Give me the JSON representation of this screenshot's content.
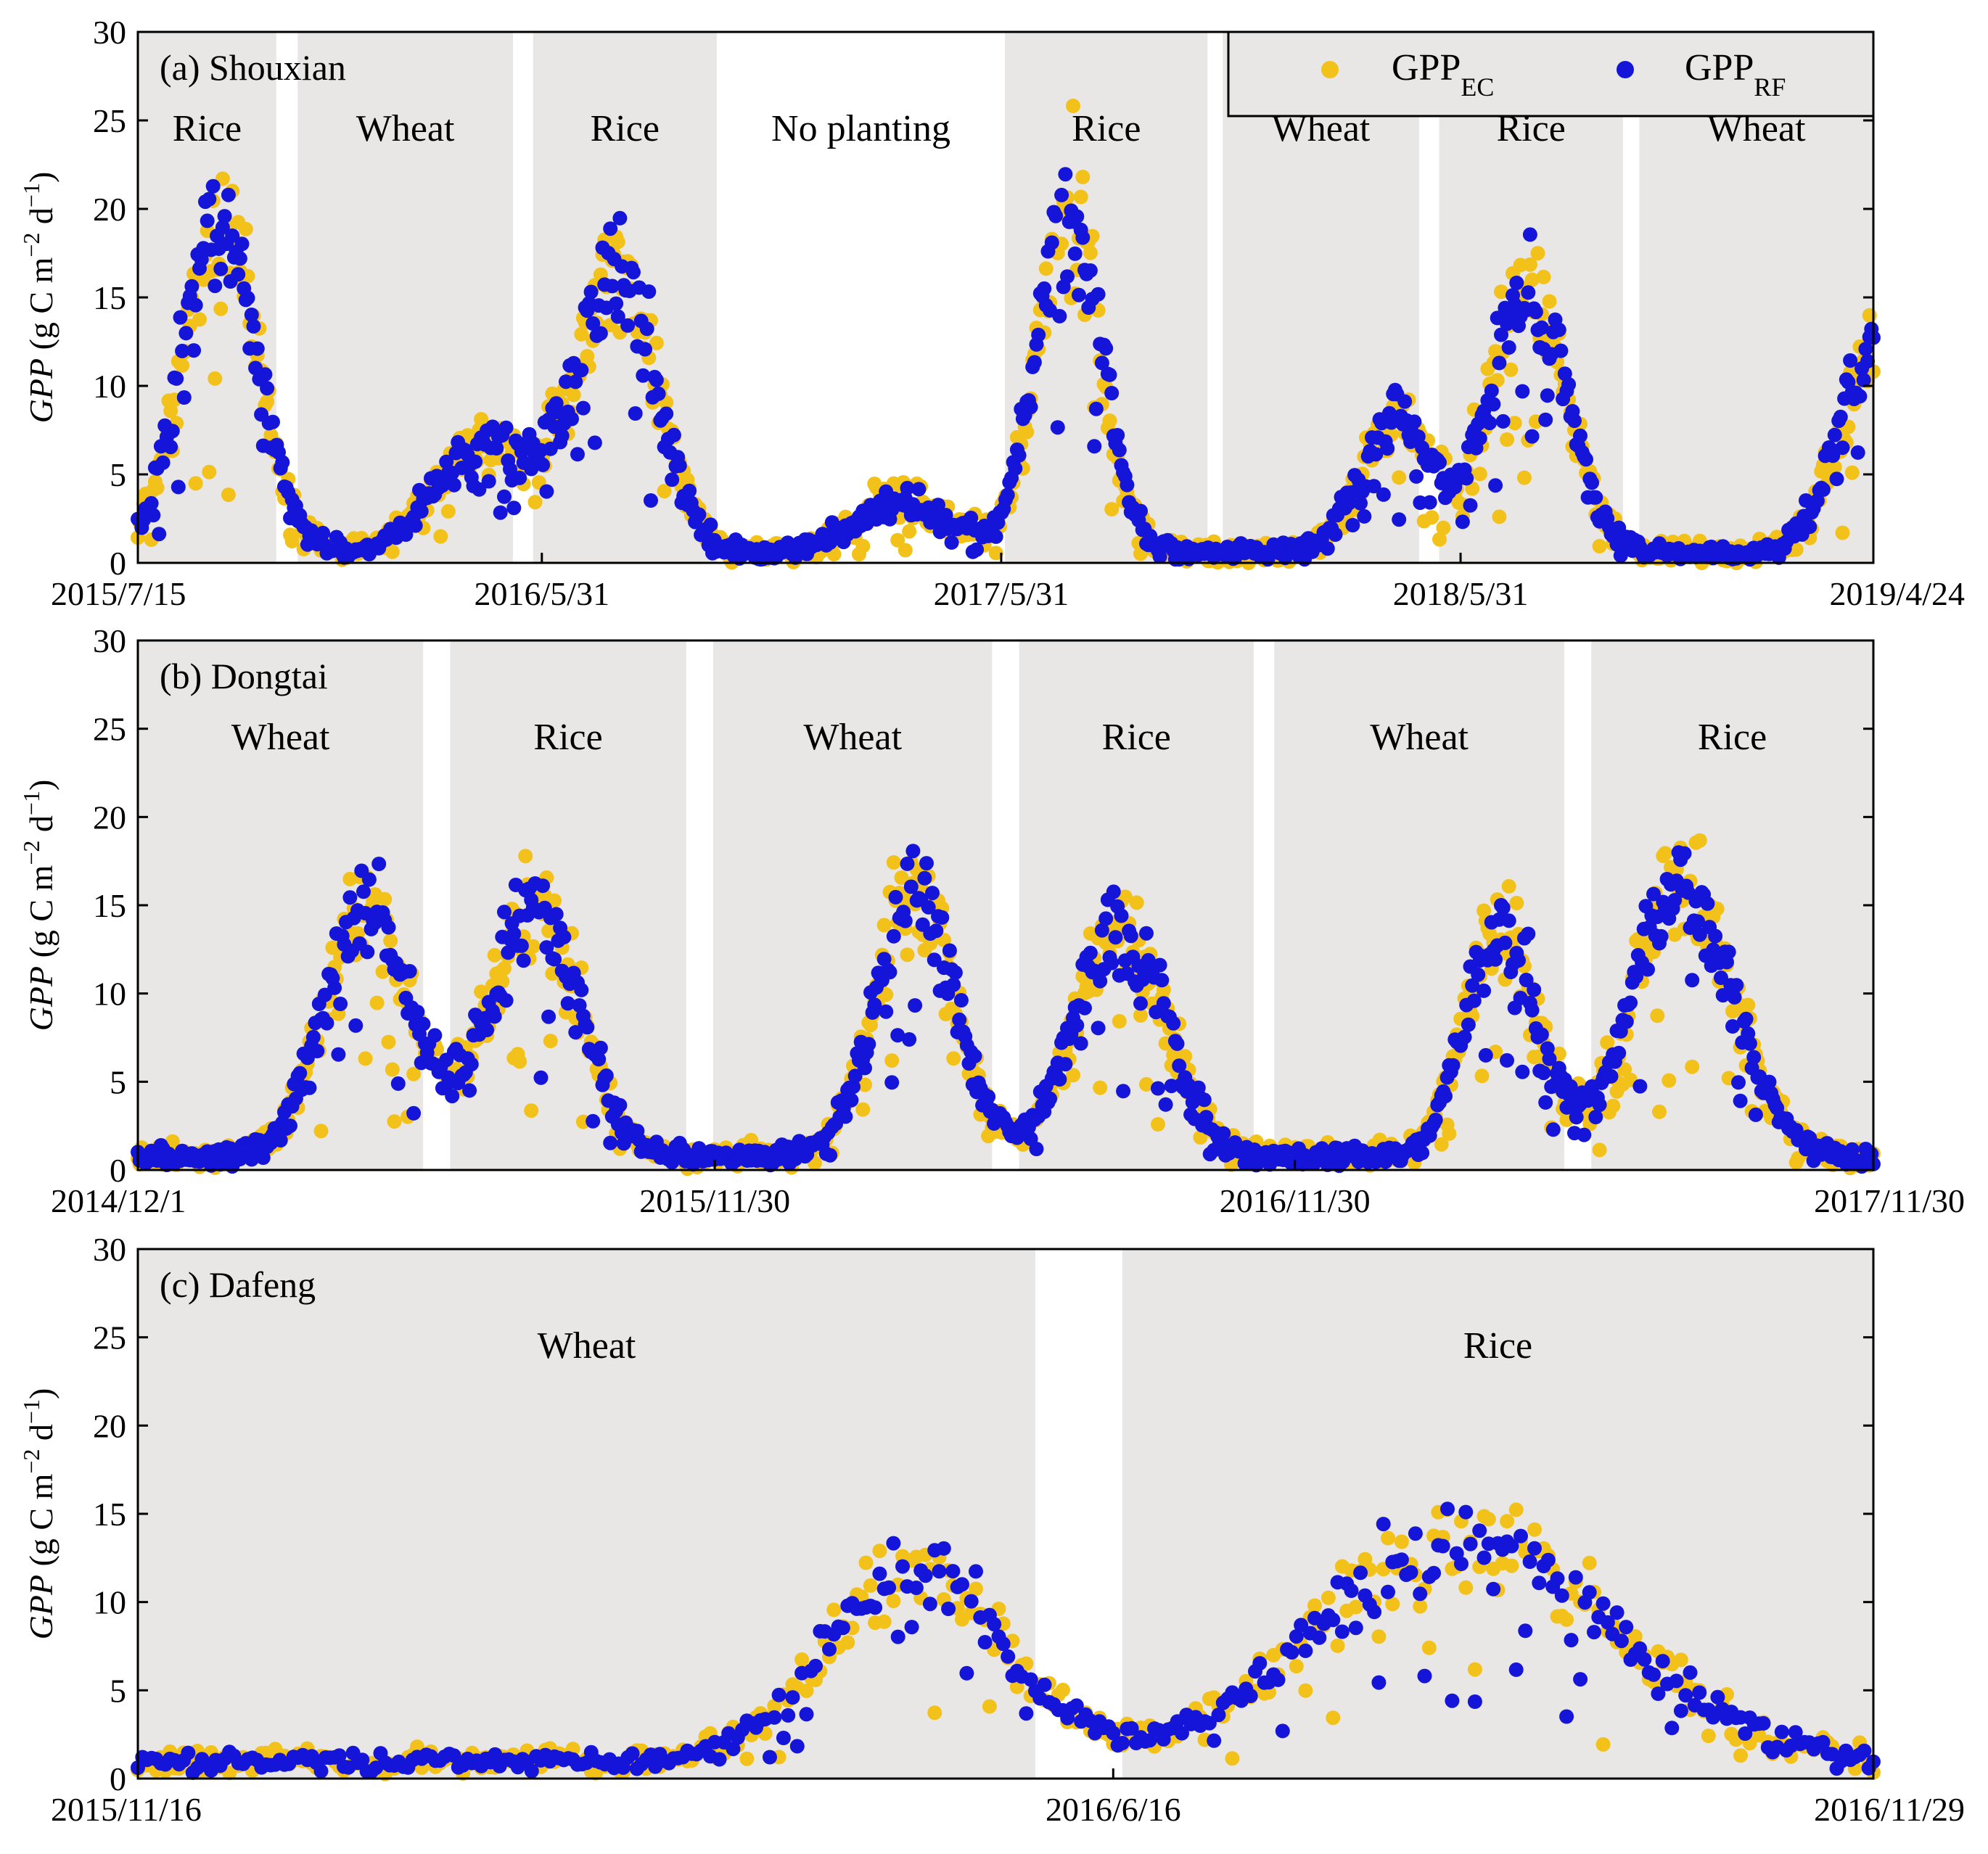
{
  "colors": {
    "ec": "#F2C21B",
    "rf": "#1515D9",
    "season_bg": "#E9E6E6",
    "axis": "#000000"
  },
  "legend": {
    "ec_main": "GPP",
    "ec_sub": "EC",
    "rf_main": "GPP",
    "rf_sub": "RF"
  },
  "chart_data": [
    {
      "type": "scatter",
      "panel_label": "(a) Shouxian",
      "ylabel": {
        "italic": "GPP",
        "text": "(g C m",
        "sup1": "−2",
        "mid": " d",
        "sup2": "−1",
        "end": ")"
      },
      "ylim": [
        0,
        30
      ],
      "yticks": [
        0,
        5,
        10,
        15,
        20,
        25,
        30
      ],
      "xrange_days": [
        0,
        1379
      ],
      "xticks": [
        {
          "day": 0,
          "label": "2015/7/15"
        },
        {
          "day": 321,
          "label": "2016/5/31"
        },
        {
          "day": 686,
          "label": "2017/5/31"
        },
        {
          "day": 1051,
          "label": "2018/5/31"
        },
        {
          "day": 1379,
          "label": "2019/4/24"
        }
      ],
      "seasons": [
        {
          "label": "Rice",
          "start": 0,
          "end": 110,
          "shaded": true
        },
        {
          "label": "Wheat",
          "start": 127,
          "end": 298,
          "shaded": true
        },
        {
          "label": "Rice",
          "start": 314,
          "end": 460,
          "shaded": true
        },
        {
          "label": "No planting",
          "start": 460,
          "end": 689,
          "shaded": false
        },
        {
          "label": "Rice",
          "start": 689,
          "end": 850,
          "shaded": true
        },
        {
          "label": "Wheat",
          "start": 862,
          "end": 1018,
          "shaded": true
        },
        {
          "label": "Rice",
          "start": 1034,
          "end": 1180,
          "shaded": true
        },
        {
          "label": "Wheat",
          "start": 1193,
          "end": 1379,
          "shaded": true
        }
      ],
      "peaks": [
        {
          "c": 65,
          "w": 42,
          "h": 18
        },
        {
          "c": 275,
          "w": 55,
          "h": 6
        },
        {
          "c": 380,
          "w": 45,
          "h": 15.5
        },
        {
          "c": 610,
          "w": 55,
          "h": 2.8
        },
        {
          "c": 740,
          "w": 35,
          "h": 20
        },
        {
          "c": 1000,
          "w": 40,
          "h": 7.5
        },
        {
          "c": 1105,
          "w": 42,
          "h": 15
        },
        {
          "c": 1379,
          "w": 40,
          "h": 11
        }
      ],
      "baseline": 0.6,
      "seed": 11,
      "legend": true
    },
    {
      "type": "scatter",
      "panel_label": "(b) Dongtai",
      "ylabel": {
        "italic": "GPP",
        "text": "(g C m",
        "sup1": "−2",
        "mid": " d",
        "sup2": "−1",
        "end": ")"
      },
      "ylim": [
        0,
        30
      ],
      "yticks": [
        0,
        5,
        10,
        15,
        20,
        25,
        30
      ],
      "xrange_days": [
        0,
        1095
      ],
      "xticks": [
        {
          "day": 0,
          "label": "2014/12/1"
        },
        {
          "day": 364,
          "label": "2015/11/30"
        },
        {
          "day": 730,
          "label": "2016/11/30"
        },
        {
          "day": 1095,
          "label": "2017/11/30"
        }
      ],
      "seasons": [
        {
          "label": "Wheat",
          "start": 0,
          "end": 180,
          "shaded": true
        },
        {
          "label": "Rice",
          "start": 197,
          "end": 346,
          "shaded": true
        },
        {
          "label": "Wheat",
          "start": 363,
          "end": 539,
          "shaded": true
        },
        {
          "label": "Rice",
          "start": 556,
          "end": 704,
          "shaded": true
        },
        {
          "label": "Wheat",
          "start": 717,
          "end": 900,
          "shaded": true
        },
        {
          "label": "Rice",
          "start": 917,
          "end": 1095,
          "shaded": true
        }
      ],
      "peaks": [
        {
          "c": 145,
          "w": 38,
          "h": 14
        },
        {
          "c": 250,
          "w": 40,
          "h": 14
        },
        {
          "c": 490,
          "w": 35,
          "h": 15
        },
        {
          "c": 620,
          "w": 40,
          "h": 13
        },
        {
          "c": 860,
          "w": 32,
          "h": 13
        },
        {
          "c": 975,
          "w": 45,
          "h": 15
        }
      ],
      "baseline": 0.8,
      "seed": 23,
      "legend": false
    },
    {
      "type": "scatter",
      "panel_label": "(c) Dafeng",
      "ylabel": {
        "italic": "GPP",
        "text": "(g C m",
        "sup1": "−2",
        "mid": " d",
        "sup2": "−1",
        "end": ")"
      },
      "ylim": [
        0,
        30
      ],
      "yticks": [
        0,
        5,
        10,
        15,
        20,
        25,
        30
      ],
      "xrange_days": [
        0,
        379
      ],
      "xticks": [
        {
          "day": 0,
          "label": "2015/11/16"
        },
        {
          "day": 213,
          "label": "2016/6/16"
        },
        {
          "day": 379,
          "label": "2016/11/29"
        }
      ],
      "seasons": [
        {
          "label": "Wheat",
          "start": 0,
          "end": 196,
          "shaded": true
        },
        {
          "label": "Rice",
          "start": 215,
          "end": 379,
          "shaded": true
        }
      ],
      "peaks": [
        {
          "c": 170,
          "w": 28,
          "h": 10.5
        },
        {
          "c": 290,
          "w": 45,
          "h": 12.5
        }
      ],
      "baseline": 1.0,
      "seed": 37,
      "legend": false
    }
  ]
}
